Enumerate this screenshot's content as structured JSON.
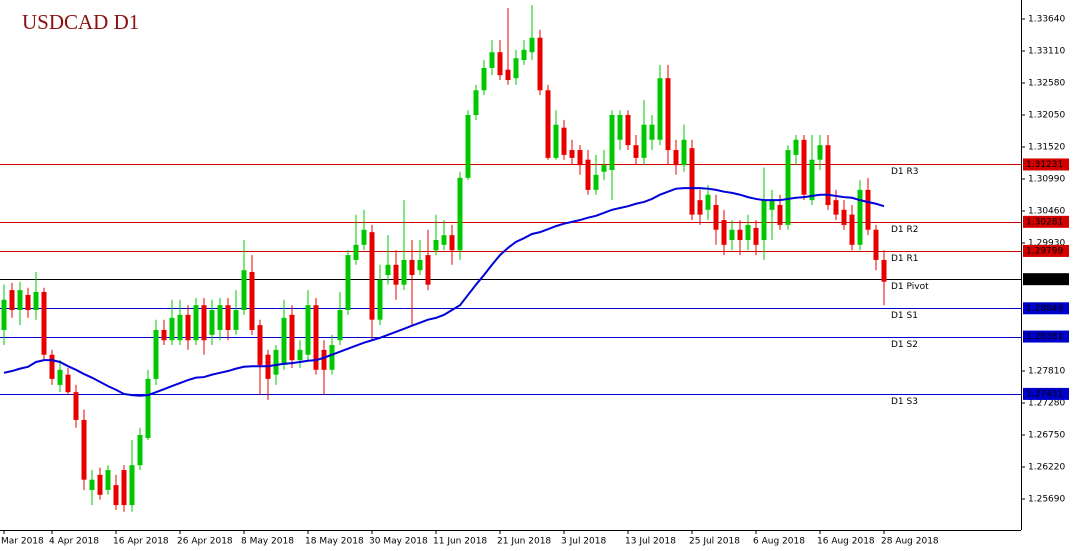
{
  "chart_data": {
    "type": "candlestick",
    "title": "USDCAD D1",
    "categories": [
      "Mar 2018",
      null,
      null,
      null,
      null,
      null,
      "4 Apr 2018",
      null,
      null,
      null,
      null,
      null,
      null,
      null,
      "16 Apr 2018",
      null,
      null,
      null,
      null,
      null,
      null,
      null,
      "26 Apr 2018",
      null,
      null,
      null,
      null,
      null,
      null,
      null,
      "8 May 2018",
      null,
      null,
      null,
      null,
      null,
      null,
      null,
      "18 May 2018",
      null,
      null,
      null,
      null,
      null,
      null,
      null,
      "30 May 2018",
      null,
      null,
      null,
      null,
      null,
      null,
      null,
      "11 Jun 2018",
      null,
      null,
      null,
      null,
      null,
      null,
      null,
      "21 Jun 2018",
      null,
      null,
      null,
      null,
      null,
      null,
      null,
      "3 Jul 2018",
      null,
      null,
      null,
      null,
      null,
      null,
      null,
      "13 Jul 2018",
      null,
      null,
      null,
      null,
      null,
      null,
      null,
      "25 Jul 2018",
      null,
      null,
      null,
      null,
      null,
      null,
      null,
      "6 Aug 2018",
      null,
      null,
      null,
      null,
      null,
      null,
      null,
      "16 Aug 2018",
      null,
      null,
      null,
      null,
      null,
      null,
      null,
      "28 Aug 2018"
    ],
    "ohlc": [
      [
        1.2849,
        1.2924,
        1.2824,
        1.2899
      ],
      [
        1.2915,
        1.2927,
        1.2869,
        1.2882
      ],
      [
        1.2882,
        1.2929,
        1.2857,
        1.2915
      ],
      [
        1.2907,
        1.2919,
        1.2869,
        1.2882
      ],
      [
        1.2882,
        1.2945,
        1.2866,
        1.2912
      ],
      [
        1.2912,
        1.2919,
        1.2799,
        1.2808
      ],
      [
        1.2808,
        1.2816,
        1.2758,
        1.2768
      ],
      [
        1.2758,
        1.2799,
        1.2746,
        1.2783
      ],
      [
        1.2775,
        1.2786,
        1.2741,
        1.2746
      ],
      [
        1.2746,
        1.2758,
        1.2687,
        1.27
      ],
      [
        1.27,
        1.2717,
        1.2584,
        1.2601
      ],
      [
        1.2584,
        1.2617,
        1.2559,
        1.2601
      ],
      [
        1.2609,
        1.2621,
        1.2568,
        1.2576
      ],
      [
        1.2584,
        1.2625,
        1.2576,
        1.2617
      ],
      [
        1.2592,
        1.2609,
        1.2551,
        1.2559
      ],
      [
        1.2617,
        1.2625,
        1.2548,
        1.2559
      ],
      [
        1.2559,
        1.2667,
        1.2548,
        1.2625
      ],
      [
        1.2625,
        1.2687,
        1.2617,
        1.2675
      ],
      [
        1.267,
        1.2783,
        1.2667,
        1.2768
      ],
      [
        1.2768,
        1.2866,
        1.2758,
        1.2849
      ],
      [
        1.2849,
        1.2866,
        1.2824,
        1.2832
      ],
      [
        1.2832,
        1.2899,
        1.2824,
        1.2869
      ],
      [
        1.2832,
        1.2899,
        1.2824,
        1.2874
      ],
      [
        1.2874,
        1.289,
        1.2816,
        1.2832
      ],
      [
        1.2832,
        1.2902,
        1.2824,
        1.289
      ],
      [
        1.289,
        1.2902,
        1.2808,
        1.2832
      ],
      [
        1.2841,
        1.2899,
        1.2824,
        1.2882
      ],
      [
        1.2849,
        1.2902,
        1.2832,
        1.289
      ],
      [
        1.289,
        1.2902,
        1.2832,
        1.2849
      ],
      [
        1.2849,
        1.2915,
        1.2841,
        1.2882
      ],
      [
        1.2882,
        1.2998,
        1.2874,
        1.2948
      ],
      [
        1.2945,
        1.2973,
        1.2841,
        1.2849
      ],
      [
        1.2857,
        1.2866,
        1.2741,
        1.2791
      ],
      [
        1.2808,
        1.2816,
        1.2733,
        1.2768
      ],
      [
        1.2775,
        1.2824,
        1.2758,
        1.2816
      ],
      [
        1.2791,
        1.2899,
        1.2783,
        1.2869
      ],
      [
        1.2874,
        1.289,
        1.2786,
        1.2799
      ],
      [
        1.2799,
        1.2832,
        1.2786,
        1.2816
      ],
      [
        1.2808,
        1.2915,
        1.2799,
        1.289
      ],
      [
        1.289,
        1.2902,
        1.2775,
        1.2783
      ],
      [
        1.2816,
        1.2832,
        1.2741,
        1.2783
      ],
      [
        1.2783,
        1.2841,
        1.2775,
        1.2824
      ],
      [
        1.2832,
        1.2912,
        1.2824,
        1.2882
      ],
      [
        1.2882,
        1.2981,
        1.2874,
        1.2973
      ],
      [
        1.2965,
        1.304,
        1.2957,
        1.299
      ],
      [
        1.299,
        1.3048,
        1.2981,
        1.3015
      ],
      [
        1.3011,
        1.3023,
        1.2832,
        1.2866
      ],
      [
        1.2866,
        1.2957,
        1.2857,
        1.2932
      ],
      [
        1.294,
        1.3006,
        1.2924,
        1.2957
      ],
      [
        1.2957,
        1.2981,
        1.2899,
        1.2924
      ],
      [
        1.2924,
        1.3064,
        1.2915,
        1.2965
      ],
      [
        1.2965,
        1.2998,
        1.2857,
        1.294
      ],
      [
        1.2948,
        1.2998,
        1.294,
        1.2965
      ],
      [
        1.2973,
        1.3015,
        1.2915,
        1.2924
      ],
      [
        1.2981,
        1.304,
        1.2973,
        1.2998
      ],
      [
        1.299,
        1.3031,
        1.2981,
        1.3006
      ],
      [
        1.3006,
        1.3023,
        1.2957,
        1.2981
      ],
      [
        1.2981,
        1.3111,
        1.2965,
        1.3101
      ],
      [
        1.3101,
        1.3213,
        1.3097,
        1.3205
      ],
      [
        1.3205,
        1.3255,
        1.3197,
        1.3246
      ],
      [
        1.3246,
        1.3296,
        1.3238,
        1.3283
      ],
      [
        1.3283,
        1.3329,
        1.3271,
        1.3309
      ],
      [
        1.3309,
        1.3329,
        1.3263,
        1.3271
      ],
      [
        1.328,
        1.3382,
        1.3255,
        1.3263
      ],
      [
        1.3266,
        1.3313,
        1.3255,
        1.3299
      ],
      [
        1.3296,
        1.3329,
        1.3288,
        1.3313
      ],
      [
        1.3309,
        1.3387,
        1.3296,
        1.3333
      ],
      [
        1.3333,
        1.3346,
        1.3238,
        1.3246
      ],
      [
        1.3246,
        1.3255,
        1.3131,
        1.3134
      ],
      [
        1.3134,
        1.3213,
        1.3131,
        1.3189
      ],
      [
        1.3184,
        1.3197,
        1.3131,
        1.3139
      ],
      [
        1.3147,
        1.3164,
        1.3122,
        1.3134
      ],
      [
        1.3147,
        1.3155,
        1.3106,
        1.3122
      ],
      [
        1.3131,
        1.3147,
        1.3073,
        1.3081
      ],
      [
        1.3081,
        1.3139,
        1.3073,
        1.3106
      ],
      [
        1.3111,
        1.3147,
        1.3097,
        1.3122
      ],
      [
        1.3114,
        1.3213,
        1.3064,
        1.3205
      ],
      [
        1.3164,
        1.3213,
        1.3147,
        1.3205
      ],
      [
        1.3205,
        1.3213,
        1.3147,
        1.3155
      ],
      [
        1.3155,
        1.3172,
        1.3122,
        1.3134
      ],
      [
        1.3134,
        1.323,
        1.3122,
        1.3189
      ],
      [
        1.3164,
        1.3205,
        1.3147,
        1.3189
      ],
      [
        1.3164,
        1.3288,
        1.3155,
        1.3266
      ],
      [
        1.3266,
        1.3288,
        1.3122,
        1.3147
      ],
      [
        1.3147,
        1.3164,
        1.3106,
        1.3122
      ],
      [
        1.3122,
        1.3189,
        1.3111,
        1.3164
      ],
      [
        1.315,
        1.3164,
        1.3031,
        1.304
      ],
      [
        1.3064,
        1.3081,
        1.3023,
        1.304
      ],
      [
        1.3048,
        1.3089,
        1.3031,
        1.3073
      ],
      [
        1.3056,
        1.3073,
        1.299,
        1.3015
      ],
      [
        1.3031,
        1.3048,
        1.2973,
        1.299
      ],
      [
        1.2998,
        1.3031,
        1.2981,
        1.3015
      ],
      [
        1.3015,
        1.3031,
        1.2973,
        1.2998
      ],
      [
        1.2998,
        1.304,
        1.2981,
        1.3023
      ],
      [
        1.3018,
        1.3031,
        1.2973,
        1.299
      ],
      [
        1.2998,
        1.3118,
        1.2965,
        1.3064
      ],
      [
        1.3048,
        1.3081,
        1.2998,
        1.3064
      ],
      [
        1.3056,
        1.3073,
        1.3015,
        1.3023
      ],
      [
        1.3023,
        1.3155,
        1.3015,
        1.3147
      ],
      [
        1.3139,
        1.3172,
        1.3122,
        1.3164
      ],
      [
        1.3164,
        1.3172,
        1.3064,
        1.3073
      ],
      [
        1.3064,
        1.3172,
        1.3056,
        1.3131
      ],
      [
        1.3131,
        1.3172,
        1.3114,
        1.3155
      ],
      [
        1.3155,
        1.3172,
        1.3048,
        1.3056
      ],
      [
        1.3064,
        1.3081,
        1.3031,
        1.304
      ],
      [
        1.3048,
        1.3064,
        1.3015,
        1.3023
      ],
      [
        1.304,
        1.3056,
        1.2981,
        1.299
      ],
      [
        1.299,
        1.3097,
        1.2981,
        1.3081
      ],
      [
        1.3081,
        1.3101,
        1.3006,
        1.3015
      ],
      [
        1.3015,
        1.3023,
        1.2948,
        1.2965
      ],
      [
        1.2965,
        1.2981,
        1.289,
        1.2929
      ]
    ],
    "up_color": "#00c800",
    "down_color": "#e80000",
    "ma": {
      "color": "#0000dc",
      "values": [
        1.2778,
        1.2781,
        1.2785,
        1.2788,
        1.2796,
        1.2799,
        1.2799,
        1.2796,
        1.2789,
        1.2783,
        1.2776,
        1.277,
        1.2763,
        1.2756,
        1.275,
        1.2743,
        1.2741,
        1.274,
        1.2741,
        1.2746,
        1.2751,
        1.2756,
        1.2761,
        1.2766,
        1.277,
        1.2771,
        1.2775,
        1.2778,
        1.2781,
        1.2785,
        1.2788,
        1.2789,
        1.2789,
        1.2789,
        1.2791,
        1.2793,
        1.2794,
        1.2796,
        1.2798,
        1.2799,
        1.2803,
        1.2808,
        1.2813,
        1.2818,
        1.2823,
        1.2828,
        1.2832,
        1.2836,
        1.2841,
        1.2846,
        1.2851,
        1.2856,
        1.2861,
        1.2866,
        1.2869,
        1.2874,
        1.2882,
        1.289,
        1.2907,
        1.2924,
        1.294,
        1.2957,
        1.2973,
        1.2985,
        1.2995,
        1.3001,
        1.3008,
        1.3011,
        1.3016,
        1.3021,
        1.3025,
        1.3028,
        1.3031,
        1.3035,
        1.3038,
        1.3043,
        1.3048,
        1.3051,
        1.3054,
        1.3058,
        1.3061,
        1.3066,
        1.3073,
        1.3078,
        1.3083,
        1.3084,
        1.3084,
        1.3084,
        1.3083,
        1.3081,
        1.3078,
        1.3076,
        1.3073,
        1.3069,
        1.3066,
        1.3064,
        1.3064,
        1.3064,
        1.3066,
        1.3068,
        1.3069,
        1.3071,
        1.3073,
        1.3073,
        1.3071,
        1.3069,
        1.3068,
        1.3064,
        1.3061,
        1.3058,
        1.3054
      ]
    },
    "levels": [
      {
        "name": "D1 R3",
        "value": 1.31231,
        "color": "#d40000"
      },
      {
        "name": "D1 R2",
        "value": 1.30281,
        "color": "#d40000"
      },
      {
        "name": "D1 R1",
        "value": 1.29799,
        "color": "#d40000"
      },
      {
        "name": "D1 Pivot",
        "value": 1.29331,
        "color": "#000000"
      },
      {
        "name": "D1 S1",
        "value": 1.28849,
        "color": "#0000cc"
      },
      {
        "name": "D1 S2",
        "value": 1.28381,
        "color": "#0000cc"
      },
      {
        "name": "D1 S3",
        "value": 1.27431,
        "color": "#0000cc"
      }
    ],
    "ylim": [
      1.25177,
      1.33955
    ],
    "yticks": [
      {
        "value": 1.3364,
        "label": "1.33640"
      },
      {
        "value": 1.3311,
        "label": "1.33110"
      },
      {
        "value": 1.3258,
        "label": "1.32580"
      },
      {
        "value": 1.3205,
        "label": "1.32050"
      },
      {
        "value": 1.3152,
        "label": "1.31520"
      },
      {
        "value": 1.3099,
        "label": "1.30990"
      },
      {
        "value": 1.3046,
        "label": "1.30460"
      },
      {
        "value": 1.2993,
        "label": "1.29930"
      },
      {
        "value": 1.2781,
        "label": "1.27810"
      },
      {
        "value": 1.2728,
        "label": "1.27280"
      },
      {
        "value": 1.2675,
        "label": "1.26750"
      },
      {
        "value": 1.2622,
        "label": "1.26220"
      },
      {
        "value": 1.2569,
        "label": "1.25690"
      }
    ]
  }
}
